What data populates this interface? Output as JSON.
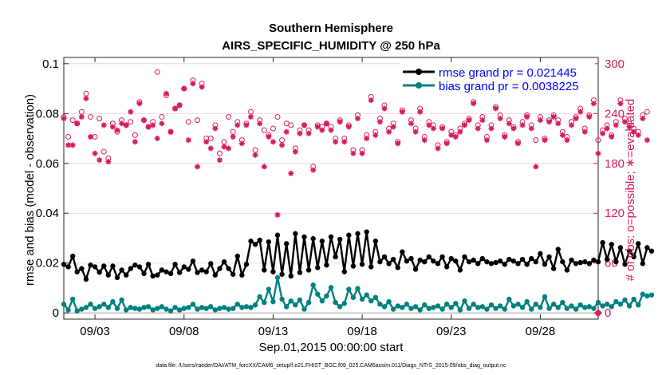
{
  "chart_data": {
    "type": "line",
    "title": "Southern Hemisphere",
    "subtitle": "AIRS_SPECIFIC_HUMIDITY @ 250 hPa",
    "xlabel": "Sep.01,2015 00:00:00 start",
    "ylabel": "rmse and bias (model - observation)",
    "y2label": "# of obs: o=possible; ∗=evaluated",
    "footnote": "data file: /Users/raeder/DAI/ATM_forcXX/CAM6_setup/f.e21.FHIST_BGC.f09_025.CAM6assim.011/Diags_NTrS_2015-09/obs_diag_output.nc",
    "x_tick_labels": [
      "09/03",
      "09/08",
      "09/13",
      "09/18",
      "09/23",
      "09/28"
    ],
    "x_tick_values": [
      3,
      8,
      13,
      18,
      23,
      28
    ],
    "xlim": [
      1.25,
      31.25
    ],
    "ylim": [
      -0.0025,
      0.1025
    ],
    "y_ticks": [
      0,
      0.02,
      0.04,
      0.06,
      0.08,
      0.1
    ],
    "y_tick_labels": [
      "0",
      "0.02",
      "0.04",
      "0.06",
      "0.08",
      "0.1"
    ],
    "y2lim": [
      -7.5,
      307.5
    ],
    "y2_ticks": [
      0,
      60,
      120,
      180,
      240,
      300
    ],
    "y2_tick_labels": [
      "0",
      "60",
      "120",
      "180",
      "240",
      "300"
    ],
    "legend": [
      "rmse grand pr = 0.021445",
      "bias grand pr = 0.0038225"
    ],
    "legend_position": "top-right",
    "colors": {
      "rmse": "#000000",
      "bias": "#008080",
      "obs": "#d81b60",
      "legend_text": "#0000ff"
    },
    "x_start_day": 1.25,
    "x_step_day": 0.25,
    "series": [
      {
        "name": "rmse",
        "axis": "left",
        "values": [
          0.0195,
          0.0185,
          0.0228,
          0.0165,
          0.0178,
          0.0135,
          0.0192,
          0.0185,
          0.0163,
          0.0188,
          0.0152,
          0.0188,
          0.0142,
          0.0172,
          0.0152,
          0.0178,
          0.0192,
          0.0185,
          0.0158,
          0.0195,
          0.0148,
          0.0152,
          0.0172,
          0.0165,
          0.0158,
          0.0195,
          0.0162,
          0.0185,
          0.0175,
          0.0208,
          0.0162,
          0.0172,
          0.0165,
          0.0198,
          0.0152,
          0.0178,
          0.0205,
          0.0178,
          0.0155,
          0.0228,
          0.0152,
          0.0195,
          0.0288,
          0.0275,
          0.0292,
          0.0172,
          0.0285,
          0.0165,
          0.0312,
          0.0155,
          0.0278,
          0.0148,
          0.0318,
          0.0162,
          0.0305,
          0.0172,
          0.0298,
          0.0182,
          0.0288,
          0.0192,
          0.0305,
          0.0225,
          0.0295,
          0.0165,
          0.0312,
          0.0188,
          0.0318,
          0.0195,
          0.0325,
          0.0185,
          0.0288,
          0.0205,
          0.0225,
          0.0198,
          0.0215,
          0.0182,
          0.0245,
          0.0208,
          0.0218,
          0.0175,
          0.0212,
          0.0205,
          0.0225,
          0.0208,
          0.0198,
          0.0225,
          0.0185,
          0.0218,
          0.0208,
          0.0172,
          0.0225,
          0.0205,
          0.0212,
          0.0198,
          0.0218,
          0.0205,
          0.0198,
          0.0202,
          0.0208,
          0.0195,
          0.0215,
          0.0208,
          0.0198,
          0.0215,
          0.0195,
          0.0218,
          0.0205,
          0.0238,
          0.0195,
          0.0225,
          0.0178,
          0.0255,
          0.0205,
          0.0172,
          0.0212,
          0.0198,
          0.0202,
          0.0205,
          0.0198,
          0.0212,
          0.0205,
          0.0282,
          0.0215,
          0.0275,
          0.0205,
          0.0262,
          0.0195,
          0.0248,
          0.0225,
          0.0278,
          0.0198,
          0.0262,
          0.0248
        ]
      },
      {
        "name": "bias",
        "axis": "left",
        "values": [
          0.0035,
          0.0012,
          0.0055,
          0.0008,
          0.0015,
          0.0022,
          0.0035,
          0.0018,
          0.0025,
          0.0035,
          0.0022,
          0.0045,
          0.0018,
          0.0052,
          0.0012,
          0.0022,
          0.0018,
          0.0015,
          0.0022,
          0.0025,
          0.0012,
          0.0018,
          0.0025,
          0.0015,
          0.0008,
          0.0022,
          0.0012,
          0.0018,
          0.0022,
          0.0035,
          0.0015,
          0.0022,
          0.0018,
          0.0025,
          0.0012,
          0.0018,
          0.0022,
          0.0015,
          0.0018,
          0.0035,
          0.0022,
          0.0025,
          0.0022,
          0.0032,
          0.0065,
          0.0042,
          0.0095,
          0.0045,
          0.0142,
          0.0055,
          0.0025,
          0.0048,
          0.0032,
          0.0052,
          0.0015,
          0.0042,
          0.0112,
          0.0075,
          0.0048,
          0.0068,
          0.0102,
          0.0042,
          0.0025,
          0.0038,
          0.0095,
          0.0062,
          0.0098,
          0.0055,
          0.0072,
          0.0048,
          0.0062,
          0.0035,
          0.0025,
          0.0045,
          0.0015,
          0.0028,
          0.0022,
          0.0035,
          0.0018,
          0.0025,
          0.0012,
          0.0032,
          0.0018,
          0.0022,
          0.0028,
          0.0015,
          0.0035,
          0.0022,
          0.0038,
          0.0012,
          0.0048,
          0.0018,
          0.0035,
          0.0022,
          0.0025,
          0.0015,
          0.0032,
          0.0018,
          0.0028,
          0.0015,
          0.0055,
          0.0028,
          0.0035,
          0.0022,
          0.0045,
          0.0015,
          0.0035,
          0.0022,
          0.0065,
          0.0018,
          0.0035,
          0.0022,
          0.0042,
          0.0018,
          0.0028,
          0.0015,
          0.0032,
          0.0022,
          0.0025,
          0.0018,
          0.0042,
          0.0028,
          0.0035,
          0.0025,
          0.0045,
          0.0035,
          0.0052,
          0.0028,
          0.0055,
          0.0032,
          0.0075,
          0.0068,
          0.0072
        ]
      },
      {
        "name": "obs possible",
        "axis": "right",
        "values": [
          236,
          212,
          232,
          228,
          242,
          264,
          236,
          212,
          234,
          194,
          186,
          228,
          218,
          232,
          226,
          230,
          214,
          254,
          232,
          224,
          230,
          290,
          236,
          262,
          218,
          246,
          250,
          270,
          230,
          280,
          232,
          276,
          210,
          210,
          226,
          192,
          206,
          236,
          218,
          230,
          208,
          228,
          242,
          196,
          232,
          220,
          214,
          222,
          236,
          208,
          228,
          226,
          198,
          220,
          226,
          220,
          176,
          226,
          224,
          228,
          224,
          210,
          232,
          210,
          226,
          196,
          238,
          196,
          214,
          260,
          218,
          234,
          250,
          222,
          228,
          206,
          244,
          276,
          232,
          222,
          246,
          212,
          230,
          226,
          202,
          224,
          206,
          218,
          214,
          222,
          228,
          234,
          254,
          226,
          236,
          212,
          226,
          248,
          238,
          214,
          232,
          224,
          206,
          230,
          238,
          226,
          208,
          236,
          210,
          232,
          238,
          232,
          218,
          212,
          230,
          236,
          246,
          222,
          238,
          256,
          208,
          220,
          226,
          214,
          230,
          256,
          234,
          228,
          222,
          218,
          238,
          242
        ]
      },
      {
        "name": "obs evaluated",
        "axis": "right",
        "values": [
          234,
          202,
          202,
          228,
          236,
          258,
          212,
          192,
          184,
          226,
          182,
          224,
          220,
          228,
          226,
          242,
          206,
          252,
          232,
          224,
          226,
          210,
          228,
          264,
          218,
          246,
          250,
          270,
          208,
          276,
          176,
          272,
          206,
          198,
          222,
          184,
          200,
          198,
          212,
          226,
          204,
          226,
          236,
          190,
          228,
          176,
          212,
          206,
          118,
          202,
          218,
          168,
          194,
          216,
          226,
          216,
          172,
          224,
          220,
          228,
          220,
          206,
          230,
          206,
          224,
          192,
          234,
          192,
          210,
          256,
          214,
          230,
          246,
          218,
          224,
          204,
          242,
          272,
          228,
          218,
          242,
          208,
          226,
          222,
          198,
          222,
          204,
          214,
          212,
          218,
          226,
          232,
          252,
          222,
          232,
          208,
          222,
          246,
          234,
          212,
          228,
          222,
          204,
          226,
          236,
          222,
          176,
          232,
          208,
          230,
          236,
          228,
          214,
          208,
          226,
          234,
          242,
          218,
          236,
          252,
          192,
          216,
          222,
          212,
          226,
          252,
          230,
          224,
          218,
          214,
          234,
          208
        ]
      }
    ]
  }
}
